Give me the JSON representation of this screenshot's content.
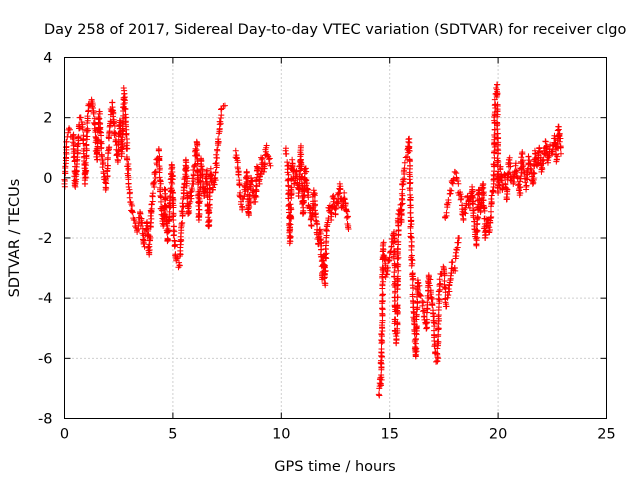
{
  "chart_data": {
    "type": "scatter",
    "title": "Day 258 of 2017, Sidereal Day-to-day VTEC variation (SDTVAR) for receiver clgo",
    "xlabel": "GPS time / hours",
    "ylabel": "SDTVAR / TECUs",
    "xlim": [
      0,
      25
    ],
    "ylim": [
      -8,
      4
    ],
    "xticks": [
      0,
      5,
      10,
      15,
      20,
      25
    ],
    "yticks": [
      -8,
      -6,
      -4,
      -2,
      0,
      2,
      4
    ],
    "grid": true,
    "marker": "+",
    "color": "#ff0000",
    "series": [
      {
        "name": "SDTVAR",
        "segments": [
          {
            "points": [
              [
                0.0,
                -0.2
              ],
              [
                0.1,
                1.2
              ],
              [
                0.25,
                1.6
              ],
              [
                0.4,
                1.4
              ],
              [
                0.5,
                -0.3
              ],
              [
                0.6,
                0.8
              ],
              [
                0.7,
                2.0
              ],
              [
                0.85,
                1.6
              ],
              [
                0.95,
                -0.2
              ],
              [
                1.1,
                2.4
              ],
              [
                1.25,
                2.6
              ],
              [
                1.4,
                1.8
              ],
              [
                1.5,
                0.6
              ],
              [
                1.6,
                2.2
              ],
              [
                1.7,
                1.0
              ],
              [
                1.8,
                0.2
              ],
              [
                1.9,
                -0.4
              ],
              [
                2.0,
                0.4
              ],
              [
                2.1,
                1.8
              ],
              [
                2.2,
                2.5
              ],
              [
                2.35,
                1.2
              ],
              [
                2.45,
                0.6
              ],
              [
                2.55,
                1.9
              ],
              [
                2.65,
                0.8
              ],
              [
                2.75,
                2.9
              ],
              [
                2.85,
                1.6
              ],
              [
                2.95,
                -0.2
              ],
              [
                3.05,
                -0.8
              ],
              [
                3.2,
                -1.4
              ],
              [
                3.35,
                -1.8
              ],
              [
                3.5,
                -1.2
              ],
              [
                3.65,
                -2.2
              ],
              [
                3.8,
                -1.5
              ],
              [
                3.9,
                -2.5
              ],
              [
                4.05,
                -0.6
              ],
              [
                4.2,
                0.2
              ],
              [
                4.35,
                0.9
              ],
              [
                4.45,
                -0.8
              ],
              [
                4.55,
                -1.6
              ],
              [
                4.65,
                -0.4
              ],
              [
                4.75,
                -2.1
              ],
              [
                4.85,
                -1.0
              ],
              [
                4.95,
                0.4
              ],
              [
                5.05,
                -1.9
              ],
              [
                5.15,
                -2.7
              ],
              [
                5.3,
                -2.9
              ],
              [
                5.4,
                -1.6
              ],
              [
                5.5,
                -0.5
              ],
              [
                5.6,
                0.6
              ],
              [
                5.7,
                -1.2
              ],
              [
                5.8,
                -0.8
              ],
              [
                5.9,
                -0.2
              ],
              [
                6.0,
                0.4
              ],
              [
                6.1,
                1.2
              ],
              [
                6.2,
                -1.4
              ],
              [
                6.3,
                0.6
              ],
              [
                6.45,
                -0.6
              ],
              [
                6.55,
                0.2
              ],
              [
                6.65,
                -1.6
              ],
              [
                6.75,
                0.3
              ],
              [
                6.85,
                -0.4
              ],
              [
                6.95,
                0.0
              ],
              [
                7.05,
                0.9
              ],
              [
                7.15,
                1.6
              ],
              [
                7.25,
                2.3
              ],
              [
                7.4,
                2.4
              ]
            ]
          },
          {
            "points": [
              [
                7.9,
                0.9
              ],
              [
                8.0,
                0.3
              ],
              [
                8.1,
                -0.5
              ],
              [
                8.2,
                -1.0
              ],
              [
                8.3,
                -0.6
              ],
              [
                8.4,
                0.2
              ],
              [
                8.5,
                -1.2
              ],
              [
                8.6,
                0.0
              ],
              [
                8.7,
                -0.4
              ],
              [
                8.8,
                -0.8
              ],
              [
                8.9,
                0.3
              ],
              [
                9.0,
                -0.2
              ],
              [
                9.1,
                0.6
              ],
              [
                9.2,
                0.2
              ],
              [
                9.3,
                1.0
              ],
              [
                9.4,
                0.7
              ],
              [
                9.5,
                0.4
              ]
            ]
          },
          {
            "points": [
              [
                10.2,
                0.9
              ],
              [
                10.3,
                0.4
              ],
              [
                10.4,
                -2.1
              ],
              [
                10.5,
                0.6
              ],
              [
                10.6,
                -0.2
              ],
              [
                10.7,
                0.2
              ],
              [
                10.8,
                -0.6
              ],
              [
                10.9,
                1.0
              ],
              [
                11.0,
                -1.2
              ],
              [
                11.1,
                0.3
              ],
              [
                11.2,
                -0.4
              ],
              [
                11.3,
                -1.0
              ],
              [
                11.4,
                -1.6
              ],
              [
                11.5,
                -0.5
              ],
              [
                11.6,
                -1.3
              ],
              [
                11.7,
                -2.2
              ],
              [
                11.8,
                -1.8
              ],
              [
                11.9,
                -3.3
              ],
              [
                11.95,
                -2.6
              ],
              [
                12.0,
                -3.5
              ],
              [
                12.1,
                -1.6
              ],
              [
                12.2,
                -1.0
              ],
              [
                12.3,
                -1.4
              ],
              [
                12.4,
                -0.6
              ],
              [
                12.5,
                -1.2
              ],
              [
                12.6,
                -0.8
              ],
              [
                12.7,
                -0.2
              ],
              [
                12.8,
                -1.0
              ],
              [
                12.9,
                -0.5
              ],
              [
                13.0,
                -1.1
              ],
              [
                13.1,
                -1.7
              ]
            ]
          },
          {
            "points": [
              [
                14.5,
                -7.2
              ],
              [
                14.55,
                -6.7
              ],
              [
                14.6,
                -6.9
              ],
              [
                14.7,
                -2.2
              ],
              [
                14.75,
                -2.6
              ],
              [
                14.8,
                -2.9
              ],
              [
                14.85,
                -3.2
              ],
              [
                15.2,
                -1.8
              ],
              [
                15.25,
                -5.1
              ],
              [
                15.3,
                -5.5
              ],
              [
                15.35,
                -4.8
              ],
              [
                15.4,
                -1.2
              ],
              [
                15.5,
                -0.9
              ],
              [
                15.55,
                -1.4
              ],
              [
                15.6,
                -0.2
              ],
              [
                15.7,
                0.5
              ],
              [
                15.8,
                0.7
              ],
              [
                15.9,
                1.3
              ],
              [
                16.0,
                -2.4
              ],
              [
                16.05,
                -3.2
              ],
              [
                16.1,
                -4.3
              ],
              [
                16.15,
                -5.1
              ],
              [
                16.2,
                -5.9
              ],
              [
                16.3,
                -3.4
              ],
              [
                16.4,
                -3.9
              ],
              [
                16.5,
                -4.1
              ],
              [
                16.6,
                -4.6
              ],
              [
                16.7,
                -5.0
              ],
              [
                16.8,
                -3.3
              ],
              [
                16.9,
                -3.8
              ],
              [
                17.0,
                -4.4
              ],
              [
                17.1,
                -5.8
              ],
              [
                17.2,
                -6.1
              ],
              [
                17.3,
                -3.6
              ],
              [
                17.4,
                -3.2
              ],
              [
                17.5,
                -3.0
              ],
              [
                17.6,
                -4.2
              ],
              [
                17.7,
                -3.9
              ],
              [
                17.8,
                -3.4
              ],
              [
                17.9,
                -2.8
              ],
              [
                18.0,
                -3.0
              ],
              [
                18.1,
                -2.4
              ],
              [
                18.2,
                -2.0
              ]
            ]
          },
          {
            "points": [
              [
                17.55,
                -1.3
              ],
              [
                18.0,
                0.2
              ],
              [
                18.3,
                -0.7
              ],
              [
                18.4,
                -1.4
              ],
              [
                18.5,
                -1.0
              ],
              [
                18.6,
                -0.6
              ],
              [
                18.7,
                -1.0
              ],
              [
                18.8,
                -0.3
              ],
              [
                18.9,
                -1.6
              ],
              [
                19.0,
                -2.2
              ],
              [
                19.1,
                -0.4
              ],
              [
                19.2,
                -1.1
              ],
              [
                19.3,
                -0.2
              ],
              [
                19.4,
                -2.0
              ],
              [
                19.5,
                -1.4
              ],
              [
                19.6,
                -1.8
              ],
              [
                19.7,
                -0.8
              ],
              [
                19.8,
                -0.2
              ],
              [
                19.85,
                2.6
              ],
              [
                19.9,
                2.8
              ],
              [
                19.95,
                3.1
              ],
              [
                20.0,
                -0.5
              ],
              [
                20.1,
                0.3
              ],
              [
                20.2,
                -0.4
              ],
              [
                20.3,
                0.1
              ],
              [
                20.4,
                -0.7
              ],
              [
                20.5,
                0.6
              ],
              [
                20.6,
                0.0
              ],
              [
                20.7,
                -0.2
              ],
              [
                20.8,
                0.4
              ],
              [
                20.9,
                0.0
              ],
              [
                21.0,
                -0.5
              ],
              [
                21.1,
                0.8
              ],
              [
                21.2,
                0.2
              ],
              [
                21.3,
                -0.3
              ],
              [
                21.4,
                0.7
              ],
              [
                21.5,
                0.3
              ],
              [
                21.6,
                -0.2
              ],
              [
                21.7,
                0.9
              ],
              [
                21.8,
                0.4
              ],
              [
                21.9,
                1.0
              ],
              [
                22.0,
                0.2
              ],
              [
                22.1,
                0.6
              ],
              [
                22.2,
                1.2
              ],
              [
                22.3,
                0.5
              ],
              [
                22.4,
                1.1
              ],
              [
                22.5,
                0.8
              ],
              [
                22.6,
                1.4
              ],
              [
                22.7,
                0.6
              ],
              [
                22.8,
                1.7
              ],
              [
                22.9,
                0.8
              ]
            ]
          }
        ]
      }
    ]
  }
}
